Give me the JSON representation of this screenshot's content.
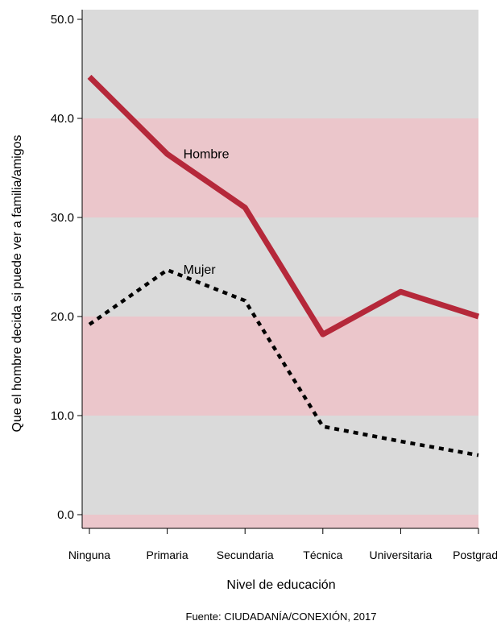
{
  "chart_data": {
    "type": "line",
    "title": "",
    "xlabel": "Nivel de educación",
    "ylabel": "Que el hombre decida si puede ver a familia/amigos",
    "source": "Fuente: CIUDADANÍA/CONEXIÓN, 2017",
    "categories": [
      "Ninguna",
      "Primaria",
      "Secundaria",
      "Técnica",
      "Universitaria",
      "Postgrado"
    ],
    "ylim": [
      -1.5,
      51.5
    ],
    "yticks": [
      0,
      10,
      20,
      30,
      40,
      50
    ],
    "ytick_labels": [
      "0.0",
      "10.0",
      "20.0",
      "30.0",
      "40.0",
      "50.0"
    ],
    "background_bands": [
      {
        "from": -1.5,
        "to": 0,
        "color": "#ebc6cb"
      },
      {
        "from": 0,
        "to": 10,
        "color": "#dadada"
      },
      {
        "from": 10,
        "to": 20,
        "color": "#ebc6cb"
      },
      {
        "from": 20,
        "to": 30,
        "color": "#dadada"
      },
      {
        "from": 30,
        "to": 40,
        "color": "#ebc6cb"
      },
      {
        "from": 40,
        "to": 51.5,
        "color": "#dadada"
      }
    ],
    "series": [
      {
        "name": "Hombre",
        "values": [
          44.2,
          36.4,
          31.0,
          18.2,
          22.5,
          20.0
        ],
        "color": "#b5283a",
        "style": "solid",
        "label_at": 1
      },
      {
        "name": "Mujer",
        "values": [
          19.2,
          24.7,
          21.6,
          8.9,
          7.4,
          6.0
        ],
        "color": "#000000",
        "style": "dotted",
        "label_at": 1
      }
    ]
  }
}
